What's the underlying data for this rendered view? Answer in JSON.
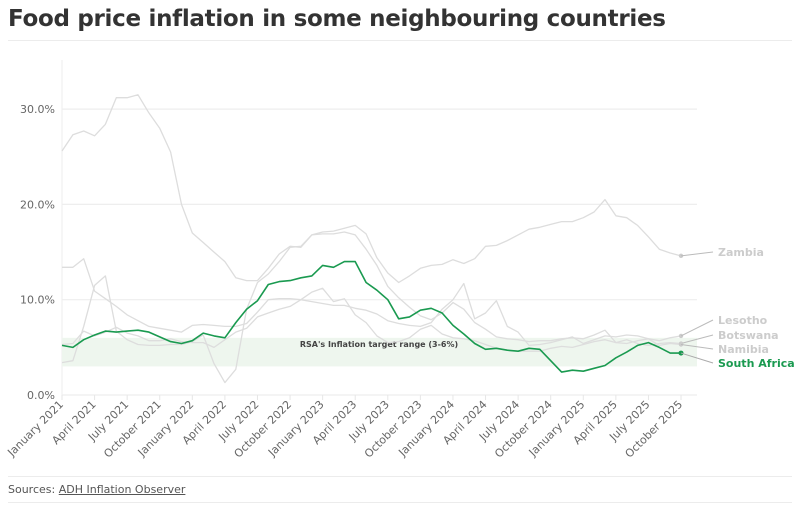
{
  "header": {
    "title": "Food price inflation in some neighbouring countries"
  },
  "footer": {
    "sources_prefix": "Sources: ",
    "sources_link": "ADH Inflation Observer"
  },
  "chart_data": {
    "type": "line",
    "title": "Food price inflation in some neighbouring countries",
    "xlabel": "",
    "ylabel": "",
    "ylim": [
      0,
      35
    ],
    "y_ticks": [
      0,
      10,
      20,
      30
    ],
    "y_tick_labels": [
      "0.0%",
      "10.0%",
      "20.0%",
      "30.0%"
    ],
    "x_start": "January 2021",
    "x_end": "October 2025",
    "x_tick_labels": [
      "January 2021",
      "April 2021",
      "July 2021",
      "October 2021",
      "January 2022",
      "April 2022",
      "July 2022",
      "October 2022",
      "January 2023",
      "April 2023",
      "July 2023",
      "October 2023",
      "January 2024",
      "April 2024",
      "July 2024",
      "October 2024",
      "January 2025",
      "April 2025",
      "July 2025",
      "October 2025"
    ],
    "grid": true,
    "band": {
      "label": "RSA's Inflation target range (3-6%)",
      "from": 3,
      "to": 6,
      "color": "#eef6ee"
    },
    "highlight_color": "#1a9a50",
    "muted_color": "#dddddd",
    "series": [
      {
        "name": "Zambia",
        "highlight": false,
        "values": [
          25.6,
          27.3,
          27.7,
          27.2,
          28.4,
          31.2,
          31.2,
          31.5,
          29.6,
          28.0,
          25.5,
          20.0,
          17.0,
          16.0,
          15.0,
          14.0,
          12.3,
          12.0,
          12.0,
          13.3,
          14.8,
          15.6,
          15.5,
          16.8,
          17.1,
          17.2,
          17.5,
          17.8,
          16.9,
          14.4,
          12.8,
          11.8,
          12.5,
          13.3,
          13.6,
          13.7,
          14.2,
          13.8,
          14.3,
          15.6,
          15.7,
          16.2,
          16.8,
          17.4,
          17.6,
          17.9,
          18.2,
          18.2,
          18.6,
          19.2,
          20.5,
          18.8,
          18.6,
          17.8,
          16.6,
          15.3,
          14.9,
          14.6
        ]
      },
      {
        "name": "Lesotho",
        "highlight": false,
        "values": [
          13.4,
          13.4,
          14.3,
          10.9,
          10.1,
          9.3,
          8.4,
          7.8,
          7.2,
          7.0,
          6.8,
          6.6,
          7.3,
          7.4,
          7.3,
          7.2,
          7.2,
          7.5,
          8.7,
          10.0,
          10.1,
          10.1,
          10.0,
          9.8,
          9.6,
          9.4,
          9.4,
          9.1,
          8.9,
          8.5,
          7.8,
          7.5,
          7.3,
          7.2,
          7.6,
          9.0,
          10.0,
          11.7,
          8.0,
          8.6,
          9.9,
          7.2,
          6.6,
          5.2,
          5.3,
          5.5,
          5.8,
          6.1,
          5.4,
          5.8,
          6.2,
          6.1,
          6.3,
          6.2,
          5.9,
          5.7,
          6.0,
          6.2
        ]
      },
      {
        "name": "Botswana",
        "highlight": false,
        "values": [
          3.4,
          3.6,
          7.2,
          11.5,
          12.5,
          6.7,
          5.8,
          5.3,
          5.2,
          5.2,
          5.3,
          5.3,
          5.6,
          6.3,
          3.3,
          1.3,
          2.7,
          9.0,
          11.8,
          12.7,
          14.0,
          15.5,
          15.6,
          16.8,
          16.9,
          16.9,
          17.1,
          16.8,
          15.3,
          13.6,
          11.4,
          10.2,
          9.2,
          8.3,
          7.9,
          8.6,
          9.7,
          9.0,
          7.6,
          6.9,
          6.1,
          5.9,
          5.8,
          5.6,
          5.7,
          5.7,
          5.9,
          6.0,
          5.9,
          6.3,
          6.8,
          5.5,
          5.8,
          5.4,
          5.2,
          5.4,
          5.5,
          5.4
        ]
      },
      {
        "name": "Namibia",
        "highlight": false,
        "values": [
          5.3,
          5.4,
          6.7,
          6.2,
          6.6,
          7.1,
          6.5,
          6.2,
          5.7,
          5.7,
          5.9,
          5.6,
          5.5,
          5.5,
          5.0,
          5.8,
          6.6,
          7.0,
          8.2,
          8.6,
          9.0,
          9.3,
          10.0,
          10.8,
          11.2,
          9.8,
          10.1,
          8.4,
          7.6,
          6.2,
          5.5,
          5.6,
          6.0,
          6.9,
          7.3,
          6.4,
          6.0,
          5.9,
          5.7,
          5.3,
          4.9,
          4.7,
          4.6,
          4.6,
          4.6,
          4.9,
          5.1,
          5.0,
          5.3,
          5.6,
          5.8,
          5.5,
          5.4,
          5.7,
          5.9,
          5.2,
          5.4,
          5.3
        ]
      },
      {
        "name": "South Africa",
        "highlight": true,
        "values": [
          5.2,
          5.0,
          5.8,
          6.3,
          6.7,
          6.6,
          6.7,
          6.8,
          6.6,
          6.1,
          5.6,
          5.4,
          5.7,
          6.5,
          6.2,
          6.0,
          7.6,
          9.0,
          9.9,
          11.6,
          11.9,
          12.0,
          12.3,
          12.5,
          13.6,
          13.4,
          14.0,
          14.0,
          11.8,
          11.0,
          10.0,
          8.0,
          8.2,
          8.9,
          9.1,
          8.6,
          7.3,
          6.4,
          5.4,
          4.8,
          4.9,
          4.7,
          4.6,
          4.9,
          4.8,
          3.6,
          2.4,
          2.6,
          2.5,
          2.8,
          3.1,
          3.9,
          4.5,
          5.2,
          5.5,
          5.0,
          4.4,
          4.4
        ]
      }
    ]
  }
}
